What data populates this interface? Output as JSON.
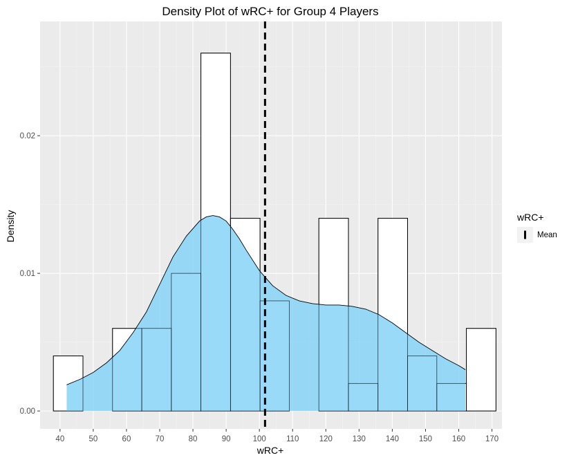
{
  "chart_data": {
    "type": "histogram",
    "title": "Density Plot of wRC+ for Group 4 Players",
    "xlabel": "wRC+",
    "ylabel": "Density",
    "xlim": [
      34,
      173
    ],
    "ylim": [
      -0.0013,
      0.0283
    ],
    "x_ticks": [
      40,
      50,
      60,
      70,
      80,
      90,
      100,
      110,
      120,
      130,
      140,
      150,
      160,
      170
    ],
    "y_ticks": [
      0.0,
      0.01,
      0.02
    ],
    "y_tick_labels": [
      "0.00",
      "0.01",
      "0.02"
    ],
    "bins": [
      {
        "x0": 38.0,
        "x1": 46.9,
        "density": 0.004
      },
      {
        "x0": 46.9,
        "x1": 55.8,
        "density": 0.0
      },
      {
        "x0": 55.8,
        "x1": 64.6,
        "density": 0.006
      },
      {
        "x0": 64.6,
        "x1": 73.5,
        "density": 0.006
      },
      {
        "x0": 73.5,
        "x1": 82.4,
        "density": 0.01
      },
      {
        "x0": 82.4,
        "x1": 91.3,
        "density": 0.026
      },
      {
        "x0": 91.3,
        "x1": 100.2,
        "density": 0.014
      },
      {
        "x0": 100.2,
        "x1": 109.0,
        "density": 0.008
      },
      {
        "x0": 109.0,
        "x1": 117.9,
        "density": 0.0
      },
      {
        "x0": 117.9,
        "x1": 126.8,
        "density": 0.014
      },
      {
        "x0": 126.8,
        "x1": 135.7,
        "density": 0.002
      },
      {
        "x0": 135.7,
        "x1": 144.6,
        "density": 0.014
      },
      {
        "x0": 144.6,
        "x1": 153.4,
        "density": 0.004
      },
      {
        "x0": 153.4,
        "x1": 162.3,
        "density": 0.002
      },
      {
        "x0": 162.3,
        "x1": 171.2,
        "density": 0.006
      }
    ],
    "density_curve": {
      "x": [
        42,
        46,
        50,
        54,
        58,
        62,
        66,
        70,
        74,
        78,
        82,
        84,
        86,
        88,
        90,
        92,
        94,
        96,
        100,
        104,
        108,
        112,
        116,
        120,
        124,
        128,
        132,
        136,
        140,
        144,
        148,
        152,
        156,
        160,
        162
      ],
      "y": [
        0.0019,
        0.0023,
        0.0028,
        0.0035,
        0.0044,
        0.0057,
        0.0072,
        0.0092,
        0.0112,
        0.0127,
        0.0138,
        0.0141,
        0.0142,
        0.0141,
        0.0138,
        0.0132,
        0.0125,
        0.0117,
        0.0102,
        0.0091,
        0.0084,
        0.008,
        0.0078,
        0.0077,
        0.0077,
        0.0076,
        0.0074,
        0.007,
        0.0064,
        0.0057,
        0.005,
        0.0044,
        0.0038,
        0.0033,
        0.003
      ]
    },
    "mean": 101.7,
    "legend": {
      "title": "wRC+",
      "entries": [
        "Mean"
      ],
      "position": "right"
    },
    "colors": {
      "panel": "#ebebeb",
      "grid_major": "#ffffff",
      "grid_minor": "#f3f3f3",
      "bar_fill": "#ffffff",
      "bar_stroke": "#000000",
      "density_fill": "#87d3f8",
      "density_opacity": "0.85",
      "mean_line": "#000000"
    }
  }
}
